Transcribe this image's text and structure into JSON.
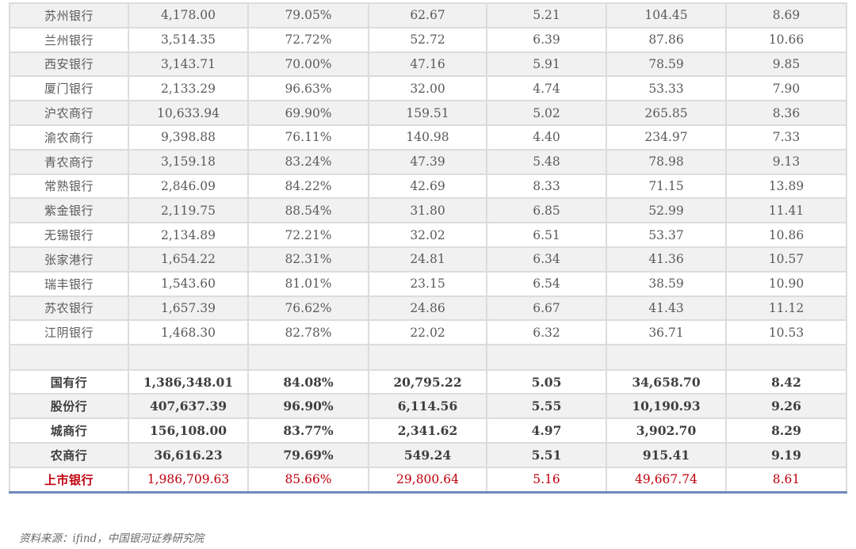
{
  "table": {
    "rows": [
      {
        "name": "苏州银行",
        "c1": "4,178.00",
        "c2": "79.05%",
        "c3": "62.67",
        "c4": "5.21",
        "c5": "104.45",
        "c6": "8.69"
      },
      {
        "name": "兰州银行",
        "c1": "3,514.35",
        "c2": "72.72%",
        "c3": "52.72",
        "c4": "6.39",
        "c5": "87.86",
        "c6": "10.66"
      },
      {
        "name": "西安银行",
        "c1": "3,143.71",
        "c2": "70.00%",
        "c3": "47.16",
        "c4": "5.91",
        "c5": "78.59",
        "c6": "9.85"
      },
      {
        "name": "厦门银行",
        "c1": "2,133.29",
        "c2": "96.63%",
        "c3": "32.00",
        "c4": "4.74",
        "c5": "53.33",
        "c6": "7.90"
      },
      {
        "name": "沪农商行",
        "c1": "10,633.94",
        "c2": "69.90%",
        "c3": "159.51",
        "c4": "5.02",
        "c5": "265.85",
        "c6": "8.36"
      },
      {
        "name": "渝农商行",
        "c1": "9,398.88",
        "c2": "76.11%",
        "c3": "140.98",
        "c4": "4.40",
        "c5": "234.97",
        "c6": "7.33"
      },
      {
        "name": "青农商行",
        "c1": "3,159.18",
        "c2": "83.24%",
        "c3": "47.39",
        "c4": "5.48",
        "c5": "78.98",
        "c6": "9.13"
      },
      {
        "name": "常熟银行",
        "c1": "2,846.09",
        "c2": "84.22%",
        "c3": "42.69",
        "c4": "8.33",
        "c5": "71.15",
        "c6": "13.89"
      },
      {
        "name": "紫金银行",
        "c1": "2,119.75",
        "c2": "88.54%",
        "c3": "31.80",
        "c4": "6.85",
        "c5": "52.99",
        "c6": "11.41"
      },
      {
        "name": "无锡银行",
        "c1": "2,134.89",
        "c2": "72.21%",
        "c3": "32.02",
        "c4": "6.51",
        "c5": "53.37",
        "c6": "10.86"
      },
      {
        "name": "张家港行",
        "c1": "1,654.22",
        "c2": "82.31%",
        "c3": "24.81",
        "c4": "6.34",
        "c5": "41.36",
        "c6": "10.57"
      },
      {
        "name": "瑞丰银行",
        "c1": "1,543.60",
        "c2": "81.01%",
        "c3": "23.15",
        "c4": "6.54",
        "c5": "38.59",
        "c6": "10.90"
      },
      {
        "name": "苏农银行",
        "c1": "1,657.39",
        "c2": "76.62%",
        "c3": "24.86",
        "c4": "6.67",
        "c5": "41.43",
        "c6": "11.12"
      },
      {
        "name": "江阴银行",
        "c1": "1,468.30",
        "c2": "82.78%",
        "c3": "22.02",
        "c4": "6.32",
        "c5": "36.71",
        "c6": "10.53"
      }
    ],
    "summary": [
      {
        "name": "国有行",
        "c1": "1,386,348.01",
        "c2": "84.08%",
        "c3": "20,795.22",
        "c4": "5.05",
        "c5": "34,658.70",
        "c6": "8.42"
      },
      {
        "name": "股份行",
        "c1": "407,637.39",
        "c2": "96.90%",
        "c3": "6,114.56",
        "c4": "5.55",
        "c5": "10,190.93",
        "c6": "9.26"
      },
      {
        "name": "城商行",
        "c1": "156,108.00",
        "c2": "83.77%",
        "c3": "2,341.62",
        "c4": "4.97",
        "c5": "3,902.70",
        "c6": "8.29"
      },
      {
        "name": "农商行",
        "c1": "36,616.23",
        "c2": "79.69%",
        "c3": "549.24",
        "c4": "5.51",
        "c5": "915.41",
        "c6": "9.19"
      }
    ],
    "total": {
      "name": "上市银行",
      "c1": "1,986,709.63",
      "c2": "85.66%",
      "c3": "29,800.64",
      "c4": "5.16",
      "c5": "49,667.74",
      "c6": "8.61"
    }
  },
  "source_note": "资料来源：ifind，中国银河证券研究院",
  "colors": {
    "row_alt_bg": "#f1f1f1",
    "grid_line": "#dcdcdc",
    "total_text": "#c0000d",
    "bottom_rule": "#6e8bbd"
  }
}
